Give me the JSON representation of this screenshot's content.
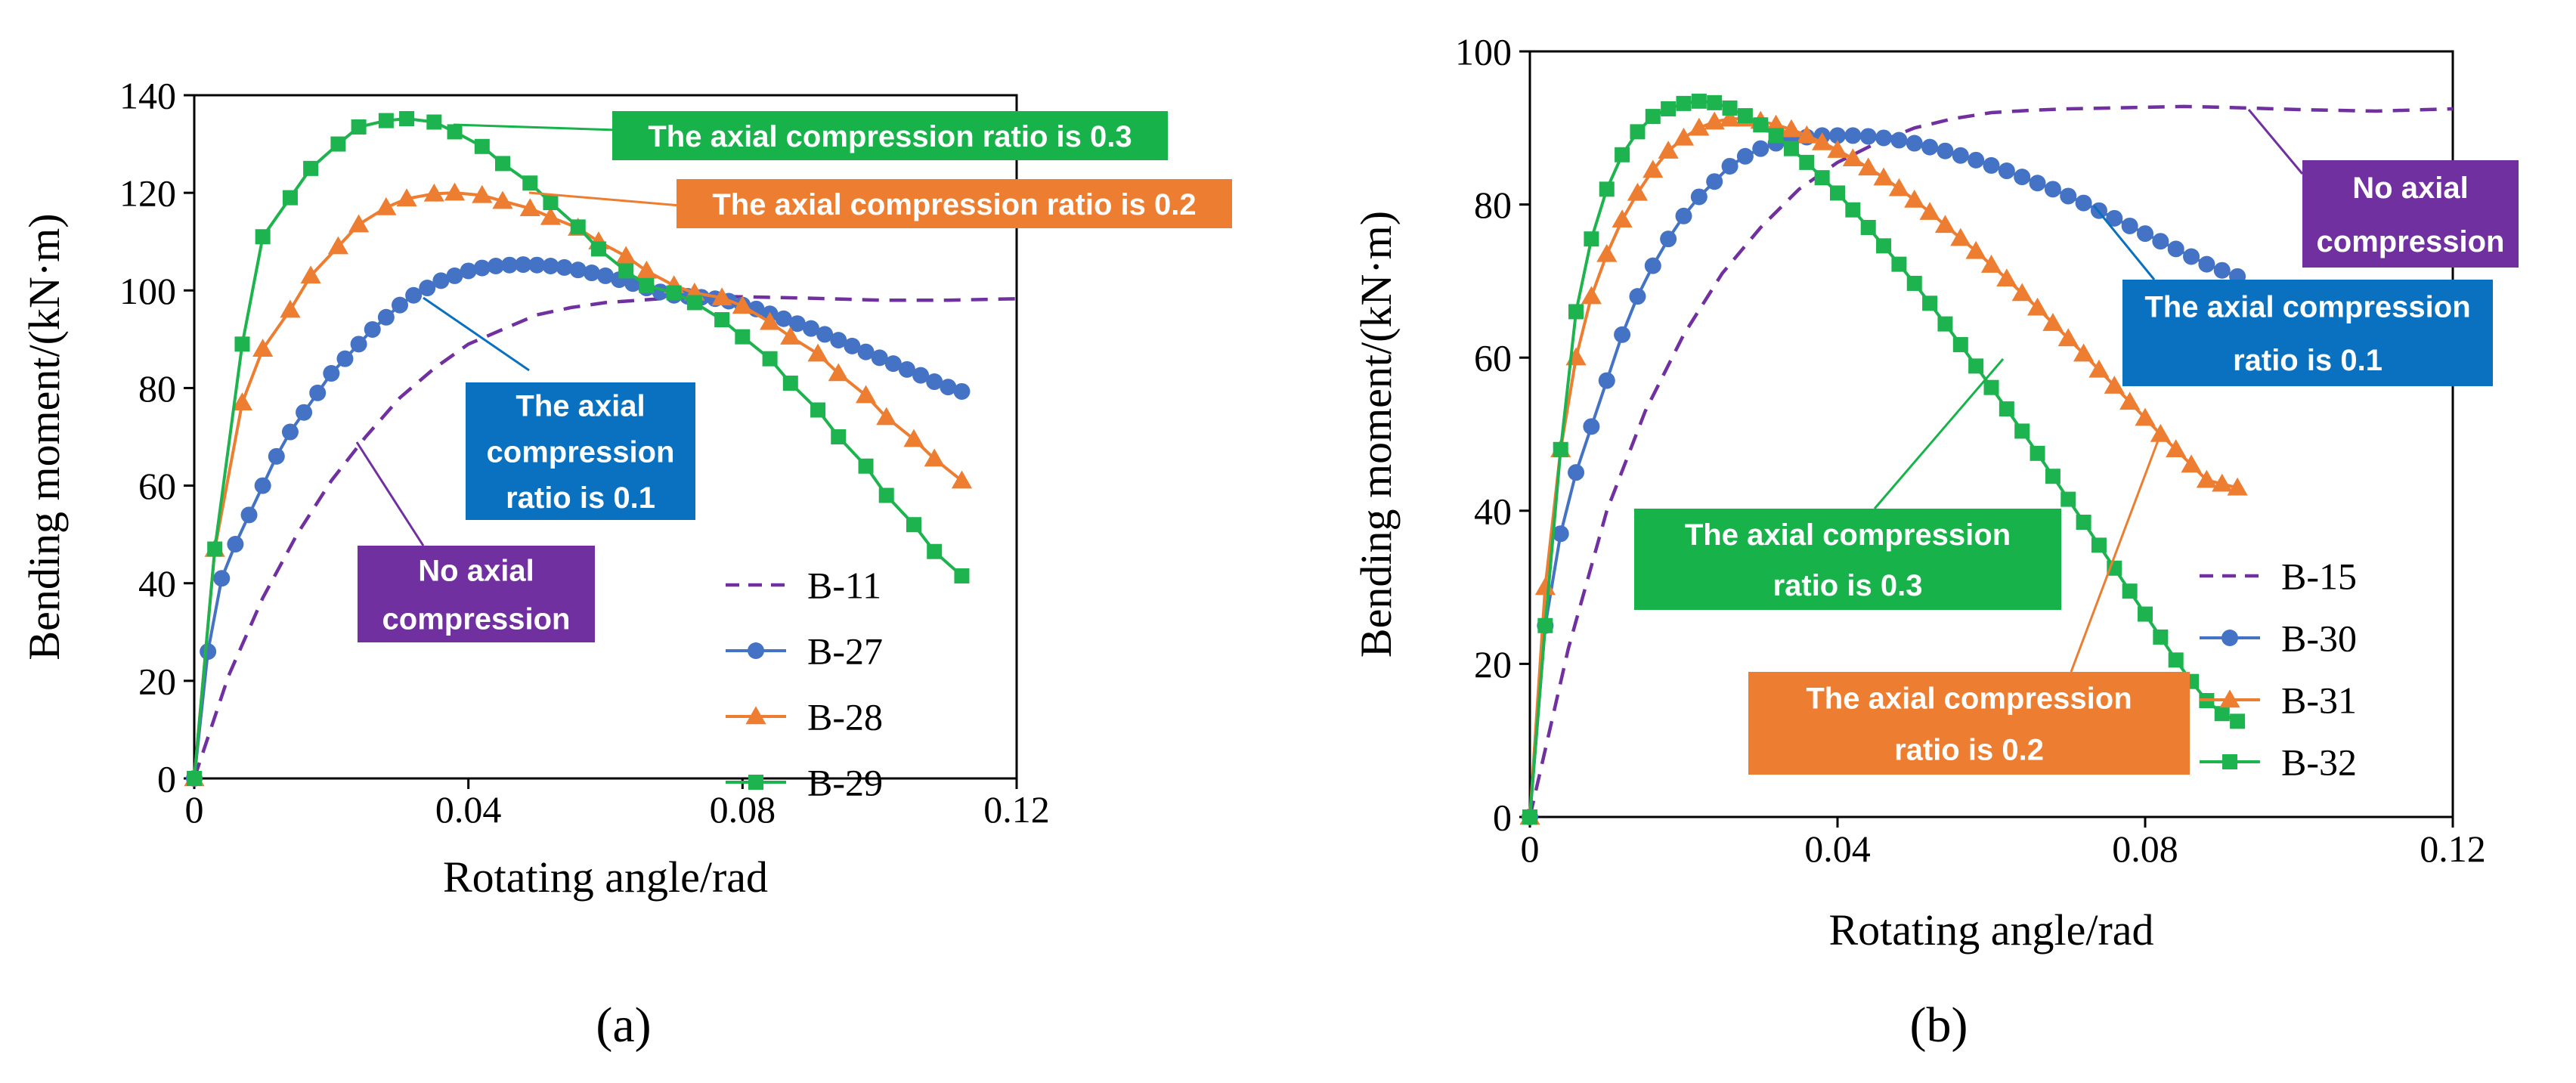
{
  "colors": {
    "purple": "#7030A0",
    "blue": "#4472C4",
    "orange": "#ED7D31",
    "green": "#1DB34E",
    "box_blue": "#0A70C0",
    "box_orange": "#ED7D31",
    "box_green": "#18B24B",
    "box_purple": "#7030A0"
  },
  "chart_data": [
    {
      "type": "line",
      "panel_label": "(a)",
      "xlabel": "Rotating angle/rad",
      "ylabel": "Bending moment/(kN·m)",
      "xlim": [
        0,
        0.12
      ],
      "ylim": [
        0,
        140
      ],
      "xticks": [
        0,
        0.04,
        0.08,
        0.12
      ],
      "xtick_labels": [
        "0",
        "0.04",
        "0.08",
        "0.12"
      ],
      "yticks": [
        0,
        20,
        40,
        60,
        80,
        100,
        120,
        140
      ],
      "ytick_labels": [
        "0",
        "20",
        "40",
        "60",
        "80",
        "100",
        "120",
        "140"
      ],
      "grid": false,
      "legend": "bottom-right",
      "series": [
        {
          "name": "B-11",
          "color_key": "purple",
          "style": "dashed",
          "marker": "none",
          "x": [
            0,
            0.005,
            0.01,
            0.015,
            0.02,
            0.025,
            0.03,
            0.035,
            0.04,
            0.045,
            0.05,
            0.055,
            0.06,
            0.065,
            0.07,
            0.075,
            0.08,
            0.09,
            0.1,
            0.11,
            0.12
          ],
          "y": [
            0,
            21,
            37,
            50,
            61,
            70,
            78,
            84,
            89,
            92,
            95,
            96.5,
            97.5,
            98,
            98.5,
            98.8,
            98.7,
            98.4,
            98,
            98,
            98.3
          ]
        },
        {
          "name": "B-27",
          "color_key": "blue",
          "style": "solid",
          "marker": "circle",
          "x": [
            0,
            0.002,
            0.004,
            0.006,
            0.008,
            0.01,
            0.012,
            0.014,
            0.016,
            0.018,
            0.02,
            0.022,
            0.024,
            0.026,
            0.028,
            0.03,
            0.032,
            0.034,
            0.036,
            0.038,
            0.04,
            0.042,
            0.044,
            0.046,
            0.048,
            0.05,
            0.052,
            0.054,
            0.056,
            0.058,
            0.06,
            0.062,
            0.064,
            0.066,
            0.068,
            0.07,
            0.072,
            0.074,
            0.076,
            0.078,
            0.08,
            0.082,
            0.084,
            0.086,
            0.088,
            0.09,
            0.092,
            0.094,
            0.096,
            0.098,
            0.1,
            0.102,
            0.104,
            0.106,
            0.108,
            0.11,
            0.112
          ],
          "y": [
            0,
            26,
            41,
            48,
            54,
            60,
            66,
            71,
            75,
            79,
            83,
            86,
            89,
            92,
            94.5,
            97,
            99,
            100.5,
            102,
            103,
            104,
            104.6,
            105,
            105.2,
            105.3,
            105.2,
            105,
            104.7,
            104.2,
            103.6,
            103,
            102.2,
            101.4,
            100.5,
            99.7,
            99,
            98.8,
            98.6,
            98.3,
            97.8,
            97,
            96.2,
            95.2,
            94.2,
            93.2,
            92.2,
            91,
            89.8,
            88.6,
            87.4,
            86.2,
            85,
            83.8,
            82.6,
            81.3,
            80.2,
            79.3
          ]
        },
        {
          "name": "B-28",
          "color_key": "orange",
          "style": "solid",
          "marker": "triangle",
          "x": [
            0,
            0.003,
            0.007,
            0.01,
            0.014,
            0.017,
            0.021,
            0.024,
            0.028,
            0.031,
            0.035,
            0.038,
            0.042,
            0.045,
            0.049,
            0.052,
            0.056,
            0.059,
            0.063,
            0.066,
            0.07,
            0.073,
            0.077,
            0.08,
            0.084,
            0.087,
            0.091,
            0.094,
            0.098,
            0.101,
            0.105,
            0.108,
            0.112
          ],
          "y": [
            0,
            47,
            77,
            88,
            96,
            103,
            109,
            113.5,
            117,
            118.8,
            119.8,
            120,
            119.5,
            118.3,
            116.8,
            115,
            112.8,
            110,
            107,
            104,
            101,
            99.5,
            98.5,
            96.8,
            93.5,
            90.5,
            87,
            83,
            78.5,
            74,
            69.5,
            65.5,
            61
          ]
        },
        {
          "name": "B-29",
          "color_key": "green",
          "style": "solid",
          "marker": "square",
          "x": [
            0,
            0.003,
            0.007,
            0.01,
            0.014,
            0.017,
            0.021,
            0.024,
            0.028,
            0.031,
            0.035,
            0.038,
            0.042,
            0.045,
            0.049,
            0.052,
            0.056,
            0.059,
            0.063,
            0.066,
            0.07,
            0.073,
            0.077,
            0.08,
            0.084,
            0.087,
            0.091,
            0.094,
            0.098,
            0.101,
            0.105,
            0.108,
            0.112
          ],
          "y": [
            0,
            47,
            89,
            111,
            119,
            125,
            130,
            133.5,
            134.8,
            135.2,
            134.5,
            132.5,
            129.5,
            126,
            122,
            118,
            113,
            108.5,
            104,
            101,
            99.5,
            97.5,
            94,
            90.5,
            86,
            81,
            75.5,
            70,
            64,
            58,
            52,
            46.5,
            41.5
          ]
        }
      ],
      "legend_labels": [
        "B-11",
        "B-27",
        "B-28",
        "B-29"
      ],
      "annotations": [
        {
          "text_lines": [
            "The axial compression ratio is 0.3"
          ],
          "color_key": "box_green"
        },
        {
          "text_lines": [
            "The axial compression ratio is 0.2"
          ],
          "color_key": "box_orange"
        },
        {
          "text_lines": [
            "The axial",
            "compression",
            "ratio is 0.1"
          ],
          "color_key": "box_blue"
        },
        {
          "text_lines": [
            "No axial",
            "compression"
          ],
          "color_key": "box_purple"
        }
      ]
    },
    {
      "type": "line",
      "panel_label": "(b)",
      "xlabel": "Rotating angle/rad",
      "ylabel": "Bending moment/(kN·m)",
      "xlim": [
        0,
        0.12
      ],
      "ylim": [
        0,
        100
      ],
      "xticks": [
        0,
        0.04,
        0.08,
        0.12
      ],
      "xtick_labels": [
        "0",
        "0.04",
        "0.08",
        "0.12"
      ],
      "yticks": [
        0,
        20,
        40,
        60,
        80,
        100
      ],
      "ytick_labels": [
        "0",
        "20",
        "40",
        "60",
        "80",
        "100"
      ],
      "grid": false,
      "legend": "bottom-right",
      "series": [
        {
          "name": "B-15",
          "color_key": "purple",
          "style": "dashed",
          "marker": "none",
          "x": [
            0,
            0.005,
            0.01,
            0.015,
            0.02,
            0.025,
            0.03,
            0.035,
            0.04,
            0.045,
            0.05,
            0.055,
            0.06,
            0.065,
            0.07,
            0.075,
            0.08,
            0.085,
            0.09,
            0.1,
            0.11,
            0.12
          ],
          "y": [
            0,
            22,
            40,
            53,
            63,
            71,
            77,
            82,
            85.5,
            88,
            90,
            91.2,
            92,
            92.3,
            92.5,
            92.6,
            92.7,
            92.8,
            92.7,
            92.4,
            92.2,
            92.5
          ]
        },
        {
          "name": "B-30",
          "color_key": "blue",
          "style": "solid",
          "marker": "circle",
          "x": [
            0,
            0.002,
            0.004,
            0.006,
            0.008,
            0.01,
            0.012,
            0.014,
            0.016,
            0.018,
            0.02,
            0.022,
            0.024,
            0.026,
            0.028,
            0.03,
            0.032,
            0.034,
            0.036,
            0.038,
            0.04,
            0.042,
            0.044,
            0.046,
            0.048,
            0.05,
            0.052,
            0.054,
            0.056,
            0.058,
            0.06,
            0.062,
            0.064,
            0.066,
            0.068,
            0.07,
            0.072,
            0.074,
            0.076,
            0.078,
            0.08,
            0.082,
            0.084,
            0.086,
            0.088,
            0.09,
            0.092
          ],
          "y": [
            0,
            25,
            37,
            45,
            51,
            57,
            63,
            68,
            72,
            75.5,
            78.5,
            81,
            83,
            85,
            86.3,
            87.3,
            88,
            88.5,
            88.8,
            89,
            89,
            89,
            88.9,
            88.7,
            88.4,
            88,
            87.5,
            87,
            86.4,
            85.8,
            85.1,
            84.4,
            83.6,
            82.8,
            82,
            81.1,
            80.2,
            79.2,
            78.2,
            77.2,
            76.2,
            75.2,
            74.2,
            73.2,
            72.2,
            71.4,
            70.6
          ]
        },
        {
          "name": "B-31",
          "color_key": "orange",
          "style": "solid",
          "marker": "triangle",
          "x": [
            0,
            0.002,
            0.004,
            0.006,
            0.008,
            0.01,
            0.012,
            0.014,
            0.016,
            0.018,
            0.02,
            0.022,
            0.024,
            0.026,
            0.028,
            0.03,
            0.032,
            0.034,
            0.036,
            0.038,
            0.04,
            0.042,
            0.044,
            0.046,
            0.048,
            0.05,
            0.052,
            0.054,
            0.056,
            0.058,
            0.06,
            0.062,
            0.064,
            0.066,
            0.068,
            0.07,
            0.072,
            0.074,
            0.076,
            0.078,
            0.08,
            0.082,
            0.084,
            0.086,
            0.088,
            0.09,
            0.092
          ],
          "y": [
            0,
            30,
            48,
            60,
            68,
            73.5,
            78,
            81.5,
            84.5,
            87,
            88.7,
            90,
            90.8,
            91.2,
            91.2,
            90.9,
            90.4,
            89.8,
            89,
            88.1,
            87.1,
            86,
            84.8,
            83.5,
            82.1,
            80.6,
            79,
            77.3,
            75.6,
            73.9,
            72.1,
            70.3,
            68.4,
            66.5,
            64.5,
            62.5,
            60.5,
            58.4,
            56.3,
            54.2,
            52.1,
            50,
            48,
            46,
            44,
            43.5,
            43
          ]
        },
        {
          "name": "B-32",
          "color_key": "green",
          "style": "solid",
          "marker": "square",
          "x": [
            0,
            0.002,
            0.004,
            0.006,
            0.008,
            0.01,
            0.012,
            0.014,
            0.016,
            0.018,
            0.02,
            0.022,
            0.024,
            0.026,
            0.028,
            0.03,
            0.032,
            0.034,
            0.036,
            0.038,
            0.04,
            0.042,
            0.044,
            0.046,
            0.048,
            0.05,
            0.052,
            0.054,
            0.056,
            0.058,
            0.06,
            0.062,
            0.064,
            0.066,
            0.068,
            0.07,
            0.072,
            0.074,
            0.076,
            0.078,
            0.08,
            0.082,
            0.084,
            0.086,
            0.088,
            0.09,
            0.092
          ],
          "y": [
            0,
            25,
            48,
            66,
            75.5,
            82,
            86.5,
            89.5,
            91.5,
            92.5,
            93.2,
            93.5,
            93.3,
            92.6,
            91.6,
            90.4,
            89,
            87.3,
            85.5,
            83.5,
            81.5,
            79.3,
            77,
            74.6,
            72.2,
            69.7,
            67.1,
            64.4,
            61.7,
            58.9,
            56.1,
            53.3,
            50.4,
            47.5,
            44.5,
            41.5,
            38.5,
            35.5,
            32.5,
            29.5,
            26.5,
            23.5,
            20.5,
            17.7,
            15.2,
            13.5,
            12.5
          ]
        }
      ],
      "legend_labels": [
        "B-15",
        "B-30",
        "B-31",
        "B-32"
      ],
      "annotations": [
        {
          "text_lines": [
            "No axial",
            "compression"
          ],
          "color_key": "box_purple"
        },
        {
          "text_lines": [
            "The axial compression",
            "ratio is 0.1"
          ],
          "color_key": "box_blue"
        },
        {
          "text_lines": [
            "The axial compression",
            "ratio is 0.3"
          ],
          "color_key": "box_green"
        },
        {
          "text_lines": [
            "The axial compression",
            "ratio is 0.2"
          ],
          "color_key": "box_orange"
        }
      ]
    }
  ]
}
